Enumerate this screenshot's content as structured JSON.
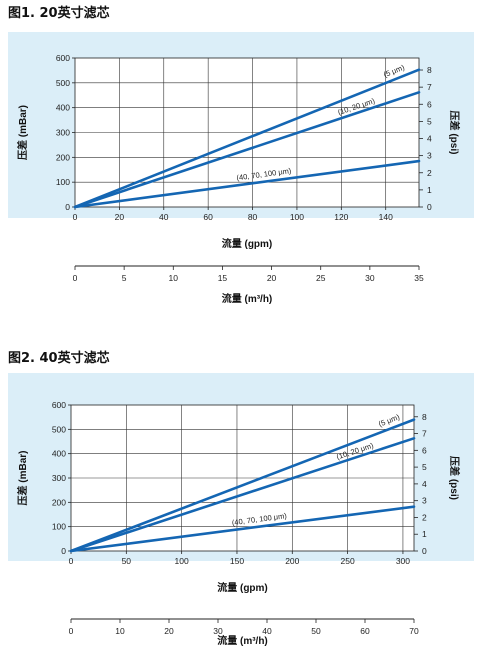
{
  "colors": {
    "panel_bg": "#dbeef8",
    "line": "#1466b3",
    "axis": "#222222"
  },
  "chart_data": [
    {
      "type": "line",
      "title": "图1. 20英寸滤芯",
      "xlabel": "流量 (gpm)",
      "ylabel": "压差 (mBar)",
      "ylabel_right": "压差 (psi)",
      "xlim": [
        0,
        155
      ],
      "ylim": [
        0,
        600
      ],
      "x_ticks": [
        "0",
        "20",
        "40",
        "60",
        "80",
        "100",
        "120",
        "140"
      ],
      "y_ticks": [
        "0",
        "100",
        "200",
        "300",
        "400",
        "500",
        "600"
      ],
      "y2_ticks": [
        "0",
        "1",
        "2",
        "3",
        "4",
        "5",
        "6",
        "7",
        "8"
      ],
      "x2label": "流量 (m³/h)",
      "x2_ticks": [
        "0",
        "5",
        "10",
        "15",
        "20",
        "25",
        "30",
        "35"
      ],
      "grid": true,
      "series": [
        {
          "name": "(5 μm)",
          "x": [
            0,
            155
          ],
          "y": [
            0,
            553
          ]
        },
        {
          "name": "(10, 20 μm)",
          "x": [
            0,
            155
          ],
          "y": [
            0,
            462
          ]
        },
        {
          "name": "(40, 70, 100 μm)",
          "x": [
            0,
            155
          ],
          "y": [
            0,
            185
          ]
        }
      ]
    },
    {
      "type": "line",
      "title": "图2. 40英寸滤芯",
      "xlabel": "流量 (gpm)",
      "ylabel": "压差 (mBar)",
      "ylabel_right": "压差 (psi)",
      "xlim": [
        0,
        310
      ],
      "ylim": [
        0,
        600
      ],
      "x_ticks": [
        "0",
        "50",
        "100",
        "150",
        "200",
        "250",
        "300"
      ],
      "y_ticks": [
        "0",
        "100",
        "200",
        "300",
        "400",
        "500",
        "600"
      ],
      "y2_ticks": [
        "0",
        "1",
        "2",
        "3",
        "4",
        "5",
        "6",
        "7",
        "8"
      ],
      "x2label": "流量 (m³/h)",
      "x2_ticks": [
        "0",
        "10",
        "20",
        "30",
        "40",
        "50",
        "60",
        "70"
      ],
      "grid": true,
      "series": [
        {
          "name": "(5 μm)",
          "x": [
            0,
            310
          ],
          "y": [
            0,
            540
          ]
        },
        {
          "name": "(10, 20 μm)",
          "x": [
            0,
            310
          ],
          "y": [
            0,
            463
          ]
        },
        {
          "name": "(40, 70, 100 μm)",
          "x": [
            0,
            310
          ],
          "y": [
            0,
            182
          ]
        }
      ]
    }
  ]
}
